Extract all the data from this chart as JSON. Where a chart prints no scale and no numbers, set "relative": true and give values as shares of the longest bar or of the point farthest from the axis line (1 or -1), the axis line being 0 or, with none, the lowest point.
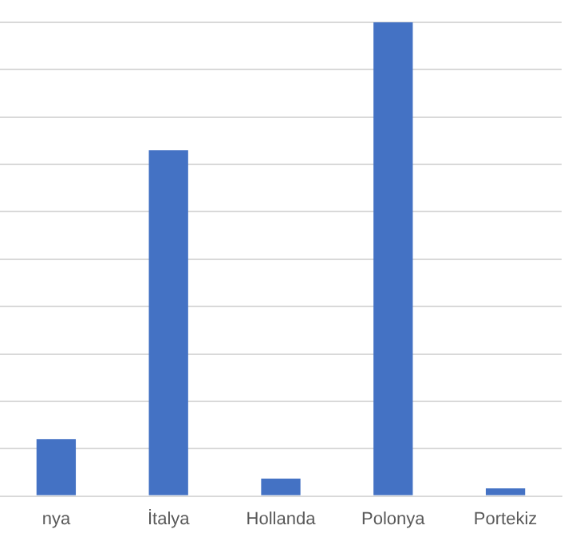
{
  "chart_data": {
    "type": "bar",
    "relative": true,
    "grid": "y",
    "categories": [
      "nya",
      "İtalya",
      "Hollanda",
      "Polonya",
      "Portekiz"
    ],
    "values": [
      0.12,
      0.73,
      0.037,
      1,
      0.016
    ],
    "color": "#4472c4"
  }
}
